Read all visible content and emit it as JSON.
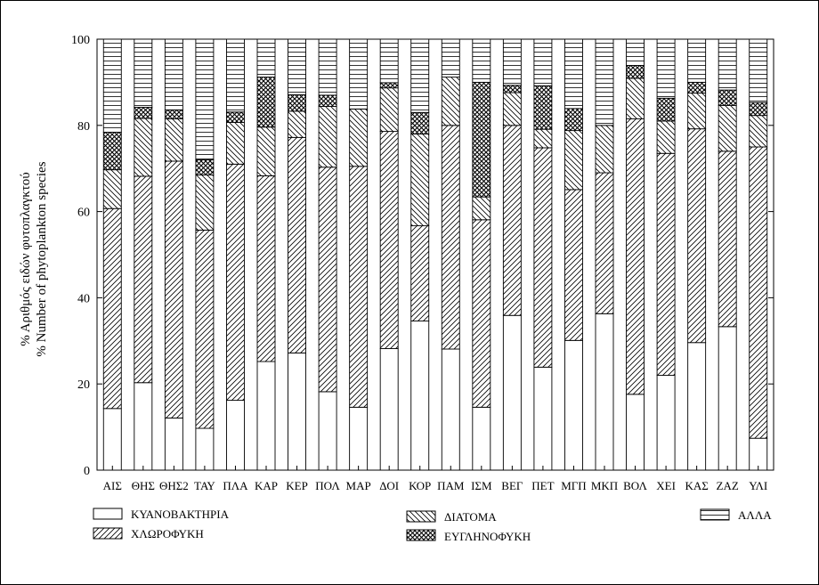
{
  "chart_data": {
    "type": "bar",
    "stacked": true,
    "ylabel_line1": "% Αριθμός ειδών φυτοπλαγκτού",
    "ylabel_line2": "% Number of phytoplankton species",
    "ylim": [
      0,
      100
    ],
    "yticks": [
      "0",
      "20",
      "40",
      "60",
      "80",
      "100"
    ],
    "categories": [
      "ΑΙΣ",
      "ΘΗΣ",
      "ΘΗΣ2",
      "ΤΑΥ",
      "ΠΛΑ",
      "ΚΑΡ",
      "ΚΕΡ",
      "ΠΟΛ",
      "ΜΑΡ",
      "ΔΟΙ",
      "ΚΟΡ",
      "ΠΑΜ",
      "ΙΣΜ",
      "ΒΕΓ",
      "ΠΕΤ",
      "ΜΓΠ",
      "ΜΚΠ",
      "ΒΟΛ",
      "ΧΕΙ",
      "ΚΑΣ",
      "ΖΑΖ",
      "ΥΛΙ"
    ],
    "series": [
      {
        "name": "ΚΥΑΝΟΒΑΚΤΗΡΙΑ",
        "pattern": "blank",
        "values": [
          14.3,
          20.3,
          12.1,
          9.7,
          16.2,
          25.2,
          27.2,
          18.2,
          14.6,
          28.2,
          34.6,
          28.1,
          14.6,
          35.9,
          23.9,
          30.1,
          36.3,
          17.6,
          22.0,
          29.6,
          33.3,
          7.4
        ]
      },
      {
        "name": "ΧΛΩΡΟΦΥΚΗ",
        "pattern": "forward-hatch",
        "values": [
          46.4,
          47.9,
          59.6,
          46.0,
          54.8,
          43.1,
          50.0,
          52.1,
          55.9,
          50.4,
          22.1,
          51.9,
          43.5,
          44.1,
          50.9,
          35.0,
          32.7,
          63.9,
          51.5,
          49.6,
          40.7,
          67.6
        ]
      },
      {
        "name": "ΔΙΑΤΟΜΑ",
        "pattern": "back-hatch",
        "values": [
          9.0,
          13.4,
          9.8,
          12.8,
          9.7,
          11.3,
          6.1,
          14.1,
          13.3,
          10.1,
          21.3,
          11.2,
          5.3,
          7.6,
          4.3,
          13.7,
          11.0,
          9.4,
          7.5,
          8.3,
          10.6,
          7.3
        ]
      },
      {
        "name": "ΕΥΓΛΗΝΟΦΥΚΗ",
        "pattern": "crosshatch",
        "values": [
          8.7,
          2.6,
          2.1,
          3.5,
          2.4,
          11.6,
          3.8,
          2.6,
          0.0,
          1.2,
          5.0,
          0.0,
          26.6,
          1.7,
          10.1,
          5.1,
          0.0,
          3.0,
          5.3,
          2.5,
          3.6,
          3.0
        ]
      },
      {
        "name": "ΑΛΛΑ",
        "pattern": "horizontal",
        "values": [
          21.6,
          15.8,
          16.4,
          28.0,
          16.9,
          8.8,
          12.9,
          13.0,
          16.2,
          10.1,
          17.0,
          8.8,
          10.0,
          10.7,
          10.8,
          16.1,
          20.0,
          6.1,
          13.7,
          10.0,
          11.8,
          14.7
        ]
      }
    ]
  }
}
